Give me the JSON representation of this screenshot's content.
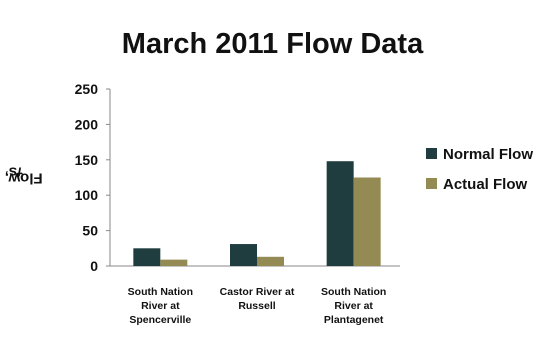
{
  "chart_data": {
    "type": "bar",
    "title": "March 2011 Flow Data",
    "ylabel_main": "Flow, m",
    "ylabel_sup": "3",
    "ylabel_tail": "/s",
    "xlabel": "",
    "ylim": [
      0,
      250
    ],
    "yticks": [
      0,
      50,
      100,
      150,
      200,
      250
    ],
    "categories": [
      [
        "South Nation",
        "River at",
        "Spencerville"
      ],
      [
        "Castor River at",
        "Russell"
      ],
      [
        "South Nation",
        "River at",
        "Plantagenet"
      ]
    ],
    "series": [
      {
        "name": "Normal Flow",
        "color": "#1f3d3f",
        "values": [
          25,
          31,
          148
        ]
      },
      {
        "name": "Actual Flow",
        "color": "#948b54",
        "values": [
          9,
          13,
          125
        ]
      }
    ],
    "grid": false,
    "legend_position": "right"
  }
}
